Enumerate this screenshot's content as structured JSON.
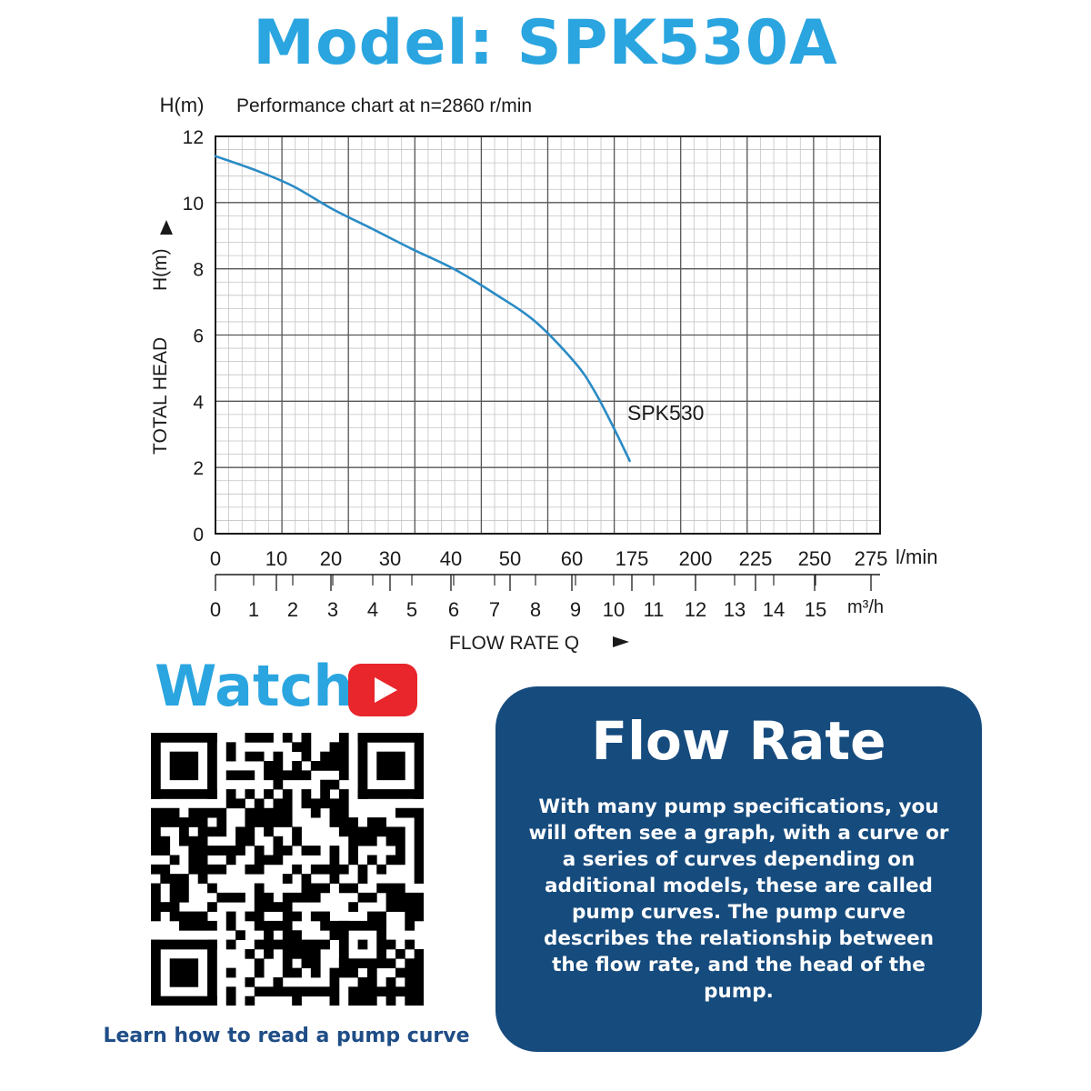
{
  "header": {
    "title": "Model: SPK530A"
  },
  "chart_data": {
    "type": "line",
    "title": "Performance chart at n=2860 r/min",
    "y_unit_label": "H(m)",
    "ylabel": "TOTAL HEAD",
    "ylabel_unit": "H(m)",
    "ylim": [
      0,
      12
    ],
    "y_ticks": [
      "0",
      "2",
      "4",
      "6",
      "8",
      "10",
      "12"
    ],
    "xlabel": "FLOW RATE Q",
    "x_unit_lmin": "l/min",
    "x_unit_m3h": "m³/h",
    "x_ticks_lmin": [
      "0",
      "10",
      "20",
      "30",
      "40",
      "50",
      "60",
      "175",
      "200",
      "225",
      "250",
      "275"
    ],
    "x_ticks_m3h": [
      "0",
      "1",
      "2",
      "3",
      "4",
      "5",
      "6",
      "7",
      "8",
      "9",
      "10",
      "11",
      "12",
      "13",
      "14",
      "15"
    ],
    "grid": true,
    "series": [
      {
        "name": "SPK530",
        "color": "#2a8bc5",
        "x_m3h": [
          0,
          1,
          2,
          3,
          4,
          5,
          6,
          7,
          8,
          9,
          9.5,
          10,
          10.4
        ],
        "y": [
          11.4,
          11.0,
          10.5,
          9.8,
          9.2,
          8.6,
          8.0,
          7.25,
          6.4,
          5.15,
          4.3,
          3.2,
          2.2
        ]
      }
    ]
  },
  "watch": {
    "label": "Watch",
    "icon": "youtube-play-icon",
    "icon_color": "#e8262c"
  },
  "qr": {
    "icon": "qr-code-icon",
    "caption": "Learn how to read a pump curve"
  },
  "info_card": {
    "title": "Flow Rate",
    "lines": [
      "With many pump specifications, you",
      "will often see a graph, with a curve or",
      "a series of curves depending on",
      "additional models, these are called",
      "pump curves. The pump curve",
      "describes the relationship between",
      "the flow rate, and the head of the",
      "pump."
    ]
  },
  "colors": {
    "accent": "#2aa5e0",
    "card_bg": "#164b7d",
    "caption": "#1f4d86"
  }
}
